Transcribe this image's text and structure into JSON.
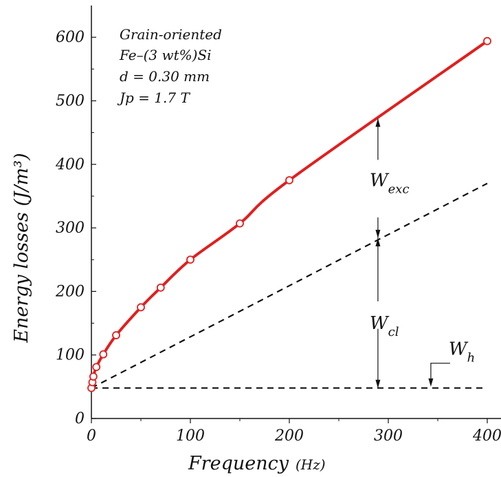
{
  "chart_data": {
    "type": "line",
    "title": "",
    "xlabel": "Frequency",
    "xlabel_unit": "(Hz)",
    "ylabel": "Energy losses (J/m³)",
    "xlim": [
      0,
      400
    ],
    "ylim": [
      0,
      650
    ],
    "x_ticks": [
      "0",
      "100",
      "200",
      "300",
      "400"
    ],
    "y_ticks": [
      "0",
      "100",
      "200",
      "300",
      "400",
      "500",
      "600"
    ],
    "x_tick_values": [
      0,
      100,
      200,
      300,
      400
    ],
    "y_tick_values": [
      0,
      100,
      200,
      300,
      400,
      500,
      600
    ],
    "grid": false,
    "annotation_lines": [
      "Grain-oriented",
      "Fe–(3 wt%)Si",
      "d = 0.30 mm",
      "Jp = 1.7 T"
    ],
    "series": [
      {
        "marker": "circle",
        "color": "#e01f1f",
        "x": [
          0,
          1,
          2,
          5,
          12,
          25,
          50,
          70,
          100,
          150,
          200,
          400
        ],
        "y": [
          48,
          57,
          66,
          81,
          101,
          131,
          175,
          206,
          250,
          307,
          375,
          594
        ]
      },
      {
        "style": "dashed",
        "color": "#111111",
        "x": [
          0,
          400
        ],
        "y": [
          48,
          370
        ]
      },
      {
        "style": "dashed",
        "color": "#111111",
        "x": [
          0,
          400
        ],
        "y": [
          48,
          48
        ]
      }
    ],
    "components": [
      {
        "label": "W",
        "sub": "exc",
        "x": 293,
        "y_from": 284,
        "y_to": 472
      },
      {
        "label": "W",
        "sub": "cl",
        "x": 293,
        "y_from": 48,
        "y_to": 284
      },
      {
        "label": "W",
        "sub": "h",
        "x": 343,
        "y_from": 0,
        "y_to": 48
      }
    ]
  }
}
